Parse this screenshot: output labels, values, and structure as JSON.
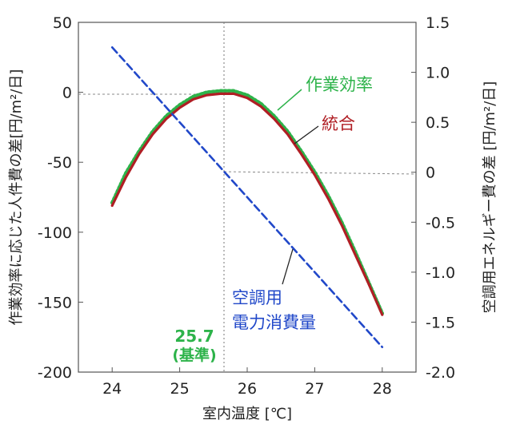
{
  "chart_data": {
    "type": "line",
    "xlabel": "室内温度 [℃]",
    "ylabel_left": "作業効率に応じた人件費の差[円/m²/日]",
    "ylabel_right": "空調用エネルギー費の差 [円/m²/日]",
    "x_ticks": [
      "24",
      "25",
      "26",
      "27",
      "28"
    ],
    "y_left_ticks": [
      "50",
      "0",
      "-50",
      "-100",
      "-150",
      "-200"
    ],
    "y_right_ticks": [
      "1.5",
      "1.0",
      "0.5",
      "0",
      "-0.5",
      "-1.0",
      "-1.5",
      "-2.0"
    ],
    "xlim": [
      23.5,
      28.5
    ],
    "ylim_left": [
      -200,
      50
    ],
    "ylim_right": [
      -2.0,
      1.5
    ],
    "series": [
      {
        "name": "作業効率",
        "axis": "left",
        "color": "#2db34a",
        "style": "dotted",
        "x": [
          24,
          24.2,
          24.4,
          24.6,
          24.8,
          25,
          25.2,
          25.4,
          25.6,
          25.7,
          25.8,
          26,
          26.2,
          26.4,
          26.6,
          26.8,
          27,
          27.2,
          27.4,
          27.6,
          27.8,
          28
        ],
        "y": [
          -79,
          -58,
          -42,
          -28,
          -17,
          -9,
          -3,
          0,
          1,
          1,
          1,
          -2,
          -8,
          -17,
          -28,
          -42,
          -57,
          -74,
          -93,
          -114,
          -136,
          -158
        ]
      },
      {
        "name": "統合",
        "axis": "left",
        "color": "#b01e24",
        "style": "solid",
        "x": [
          24,
          24.2,
          24.4,
          24.6,
          24.8,
          25,
          25.2,
          25.4,
          25.6,
          25.7,
          25.8,
          26,
          26.2,
          26.4,
          26.6,
          26.8,
          27,
          27.2,
          27.4,
          27.6,
          27.8,
          28
        ],
        "y": [
          -81,
          -61,
          -44,
          -30,
          -19,
          -11,
          -5,
          -2,
          -1,
          -1,
          -1,
          -4,
          -10,
          -19,
          -30,
          -44,
          -59,
          -76,
          -95,
          -116,
          -137,
          -159
        ]
      },
      {
        "name": "空調用\n電力消費量",
        "axis": "right",
        "color": "#2148c9",
        "style": "dashed",
        "x": [
          24,
          28
        ],
        "y": [
          1.25,
          -1.75
        ]
      }
    ],
    "reference_line": {
      "x": 25.7,
      "label": "25.7",
      "sublabel": "(基準)",
      "color": "#2db34a"
    }
  }
}
